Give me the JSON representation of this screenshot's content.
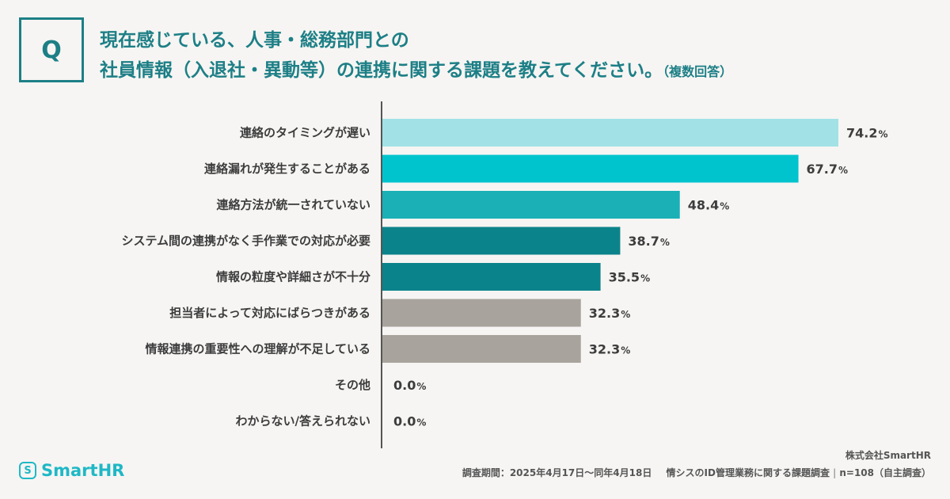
{
  "question": {
    "badge": "Q",
    "line1": "現在感じている、人事・総務部門との",
    "line2": "社員情報（入退社・異動等）の連携に関する課題を教えてください。",
    "note": "（複数回答）"
  },
  "chart_data": {
    "type": "bar",
    "orientation": "horizontal",
    "categories": [
      "連絡のタイミングが遅い",
      "連絡漏れが発生することがある",
      "連絡方法が統一されていない",
      "システム間の連携がなく手作業での対応が必要",
      "情報の粒度や詳細さが不十分",
      "担当者によって対応にばらつきがある",
      "情報連携の重要性への理解が不足している",
      "その他",
      "わからない/答えられない"
    ],
    "values": [
      74.2,
      67.7,
      48.4,
      38.7,
      35.5,
      32.3,
      32.3,
      0.0,
      0.0
    ],
    "value_labels": [
      "74.2",
      "67.7",
      "48.4",
      "38.7",
      "35.5",
      "32.3",
      "32.3",
      "0.0",
      "0.0"
    ],
    "unit": "%",
    "bar_colors": [
      "#a2e2e6",
      "#00c4cd",
      "#1ab0b6",
      "#0b838a",
      "#0b838a",
      "#a8a49d",
      "#a8a49d",
      "#a8a49d",
      "#a8a49d"
    ],
    "xlim": [
      0,
      100
    ]
  },
  "brand": {
    "logo_text": "SmartHR",
    "logo_mark": "S",
    "color": "#1fb8c6"
  },
  "footer": {
    "company": "株式会社SmartHR",
    "period": "調査期間：2025年4月17日〜同年4月18日",
    "survey": "情シスのID管理業務に関する課題調査",
    "sample": "n=108（自主調査）"
  }
}
